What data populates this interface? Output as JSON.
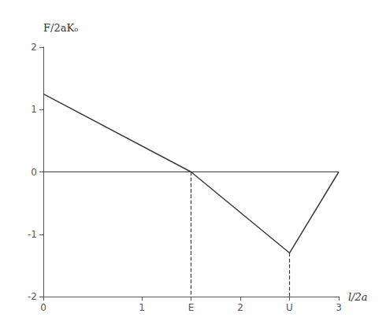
{
  "chart_data": {
    "type": "line",
    "xlabel": "l/2a",
    "ylabel": "F/2aKₒ",
    "x": [
      0,
      1.5,
      2.5,
      3.0
    ],
    "values": [
      1.25,
      0.0,
      -1.3,
      0.0
    ],
    "color": "#3a3a3a",
    "xlim": [
      0,
      3
    ],
    "ylim": [
      -2,
      2
    ],
    "xticks": [
      0,
      1,
      {
        "value": 1.5,
        "label": "E"
      },
      2,
      {
        "value": 2.5,
        "label": "U"
      },
      3
    ],
    "yticks": [
      -2,
      -1,
      0,
      1,
      2
    ],
    "hlines": [
      0
    ],
    "dashed_lines": [
      {
        "x": 1.5,
        "y": [
          0.0,
          -2
        ]
      },
      {
        "x": 2.5,
        "y": [
          -1.3,
          -2
        ]
      }
    ],
    "grid": false
  }
}
